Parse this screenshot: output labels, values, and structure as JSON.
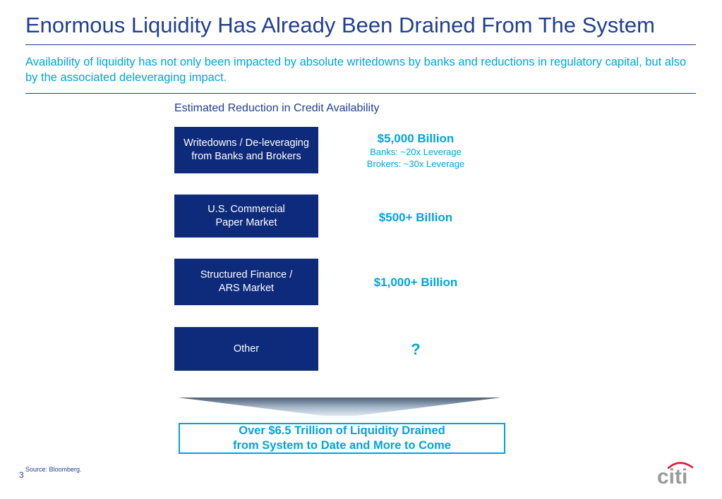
{
  "header": {
    "title": "Enormous Liquidity Has Already Been Drained From The System",
    "subtitle": "Availability of liquidity has not only been impacted by absolute writedowns by banks and reductions in regulatory capital, but also by the associated deleveraging impact."
  },
  "chart": {
    "caption": "Estimated Reduction in Credit Availability",
    "rows": [
      {
        "label": "Writedowns / De-leveraging\nfrom  Banks and Brokers",
        "value": "$5,000 Billion",
        "note1": "Banks: ~20x Leverage",
        "note2": "Brokers: ~30x Leverage"
      },
      {
        "label": "U.S. Commercial\nPaper Market",
        "value": "$500+ Billion"
      },
      {
        "label": "Structured Finance /\nARS Market",
        "value": "$1,000+ Billion"
      },
      {
        "label": "Other",
        "value": "?"
      }
    ],
    "result": "Over $6.5 Trillion of Liquidity Drained\nfrom System to Date and More to Come"
  },
  "footer": {
    "page_number": "3",
    "source": "Source: Bloomberg.",
    "logo_text": "citi"
  },
  "colors": {
    "title_blue": "#1f3f95",
    "box_navy": "#0e2a7a",
    "accent_cyan": "#00a3e0",
    "logo_red": "#e31937"
  }
}
